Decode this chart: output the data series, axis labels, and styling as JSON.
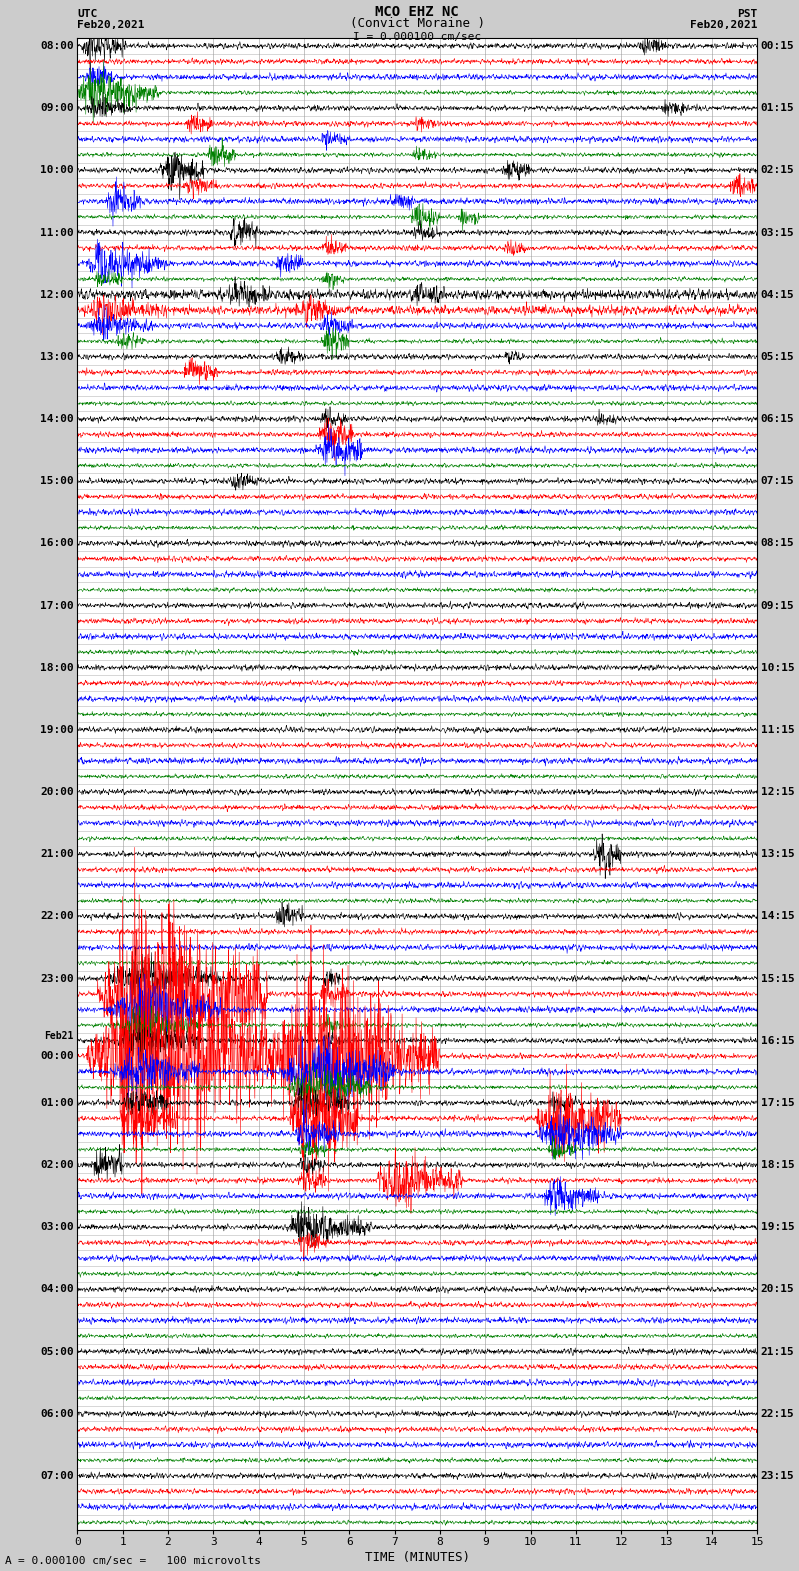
{
  "title_line1": "MCO EHZ NC",
  "title_line2": "(Convict Moraine )",
  "scale_label": "I = 0.000100 cm/sec",
  "footer_label": "= 0.000100 cm/sec =   100 microvolts",
  "utc_label_top": "UTC",
  "utc_date": "Feb20,2021",
  "pst_label_top": "PST",
  "pst_date": "Feb20,2021",
  "utc_times": [
    "08:00",
    "",
    "",
    "",
    "09:00",
    "",
    "",
    "",
    "10:00",
    "",
    "",
    "",
    "11:00",
    "",
    "",
    "",
    "12:00",
    "",
    "",
    "",
    "13:00",
    "",
    "",
    "",
    "14:00",
    "",
    "",
    "",
    "15:00",
    "",
    "",
    "",
    "16:00",
    "",
    "",
    "",
    "17:00",
    "",
    "",
    "",
    "18:00",
    "",
    "",
    "",
    "19:00",
    "",
    "",
    "",
    "20:00",
    "",
    "",
    "",
    "21:00",
    "",
    "",
    "",
    "22:00",
    "",
    "",
    "",
    "23:00",
    "",
    "",
    "",
    "Feb21",
    "00:00",
    "",
    "",
    "01:00",
    "",
    "",
    "",
    "02:00",
    "",
    "",
    "",
    "03:00",
    "",
    "",
    "",
    "04:00",
    "",
    "",
    "",
    "05:00",
    "",
    "",
    "",
    "06:00",
    "",
    "",
    "",
    "07:00",
    "",
    "",
    ""
  ],
  "pst_times": [
    "00:15",
    "",
    "",
    "",
    "01:15",
    "",
    "",
    "",
    "02:15",
    "",
    "",
    "",
    "03:15",
    "",
    "",
    "",
    "04:15",
    "",
    "",
    "",
    "05:15",
    "",
    "",
    "",
    "06:15",
    "",
    "",
    "",
    "07:15",
    "",
    "",
    "",
    "08:15",
    "",
    "",
    "",
    "09:15",
    "",
    "",
    "",
    "10:15",
    "",
    "",
    "",
    "11:15",
    "",
    "",
    "",
    "12:15",
    "",
    "",
    "",
    "13:15",
    "",
    "",
    "",
    "14:15",
    "",
    "",
    "",
    "15:15",
    "",
    "",
    "",
    "16:15",
    "",
    "",
    "",
    "17:15",
    "",
    "",
    "",
    "18:15",
    "",
    "",
    "",
    "19:15",
    "",
    "",
    "",
    "20:15",
    "",
    "",
    "",
    "21:15",
    "",
    "",
    "",
    "22:15",
    "",
    "",
    "",
    "23:15",
    "",
    "",
    ""
  ],
  "colors": [
    "black",
    "red",
    "blue",
    "green"
  ],
  "bg_color": "#cccccc",
  "plot_bg": "white",
  "n_rows": 96,
  "n_cols": 2000,
  "x_min": 0,
  "x_max": 15,
  "x_ticks": [
    0,
    1,
    2,
    3,
    4,
    5,
    6,
    7,
    8,
    9,
    10,
    11,
    12,
    13,
    14,
    15
  ],
  "xlabel": "TIME (MINUTES)",
  "seed": 42
}
